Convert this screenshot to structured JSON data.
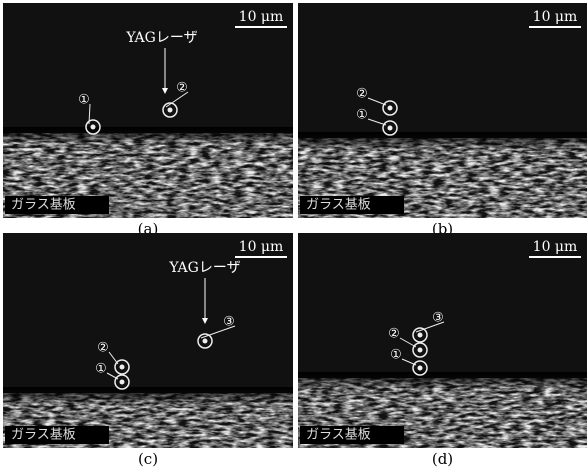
{
  "panels": [
    {
      "caption": "(a)",
      "scale": "10 μm",
      "laser": "YAGレーザ",
      "substrate": "ガラス基板",
      "markers": [
        "①",
        "②"
      ]
    },
    {
      "caption": "(b)",
      "scale": "10 μm",
      "substrate": "ガラス基板",
      "markers": [
        "②",
        "①"
      ]
    },
    {
      "caption": "(c)",
      "scale": "10 μm",
      "laser": "YAGレーザ",
      "substrate": "ガラス基板",
      "markers": [
        "③",
        "②",
        "①"
      ]
    },
    {
      "caption": "(d)",
      "scale": "10 μm",
      "substrate": "ガラス基板",
      "markers": [
        "③",
        "②",
        "①"
      ]
    }
  ]
}
